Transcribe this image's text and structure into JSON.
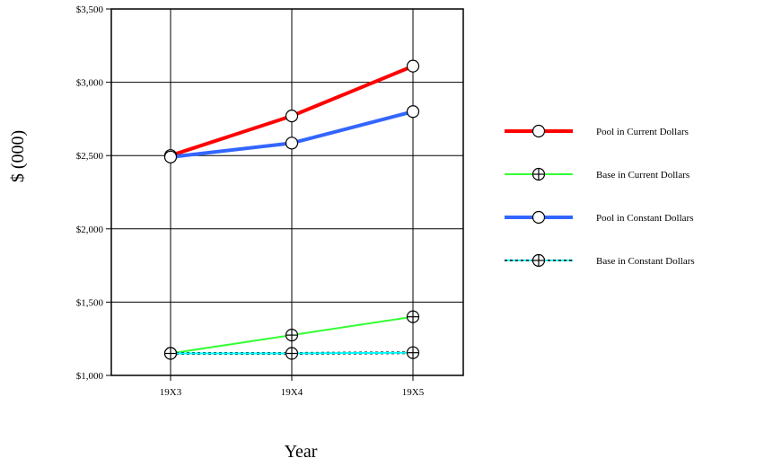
{
  "chart_data": {
    "type": "line",
    "title": "",
    "xlabel": "Year",
    "ylabel": "$ (000)",
    "categories": [
      "19X3",
      "19X4",
      "19X5"
    ],
    "ylim": [
      1000,
      3500
    ],
    "yticks": [
      1000,
      1500,
      2000,
      2500,
      3000,
      3500
    ],
    "ytick_labels": [
      "$1,000",
      "$1,500",
      "$2,000",
      "$2,500",
      "$3,000",
      "$3,500"
    ],
    "grid": true,
    "legend_position": "right",
    "series": [
      {
        "name": "Pool in Current Dollars",
        "values": [
          2500,
          2770,
          3110
        ],
        "color": "#ff0000",
        "width": 4,
        "dash": "",
        "marker": "circle"
      },
      {
        "name": "Base in Current Dollars",
        "values": [
          1150,
          1275,
          1400
        ],
        "color": "#33ff33",
        "width": 2,
        "dash": "",
        "marker": "circle-plus"
      },
      {
        "name": "Pool  in Constant Dollars",
        "values": [
          2490,
          2585,
          2800
        ],
        "color": "#3366ff",
        "width": 4,
        "dash": "",
        "marker": "circle"
      },
      {
        "name": "Base in Constant Dollars",
        "values": [
          1150,
          1150,
          1155
        ],
        "color": "#00ffff",
        "width": 2,
        "dash": "3,3",
        "marker": "circle-plus"
      }
    ]
  }
}
